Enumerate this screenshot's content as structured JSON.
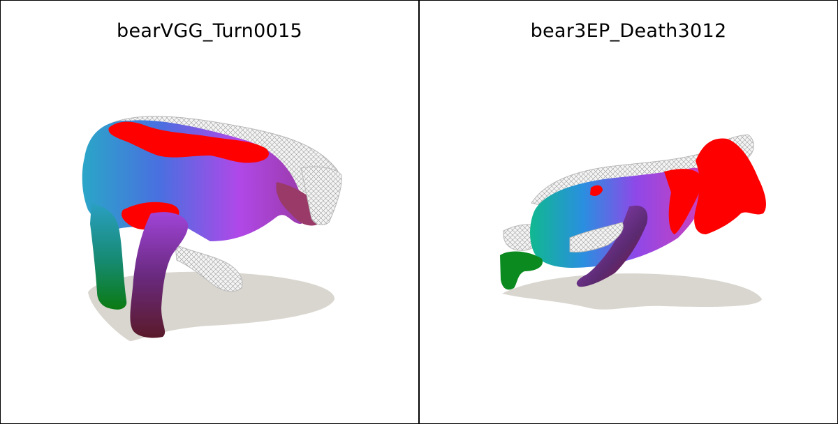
{
  "panels": [
    {
      "title": "bearVGG_Turn0015"
    },
    {
      "title": "bear3EP_Death3012"
    }
  ],
  "colors": {
    "shadow": "#d9d6cf",
    "mesh": "#c8c8c8",
    "red": "#ff0000",
    "magenta": "#b347e6",
    "blue": "#3a7fd8",
    "teal": "#1fb8b0",
    "green": "#0a8a1a",
    "maroon": "#6a1a3a"
  }
}
